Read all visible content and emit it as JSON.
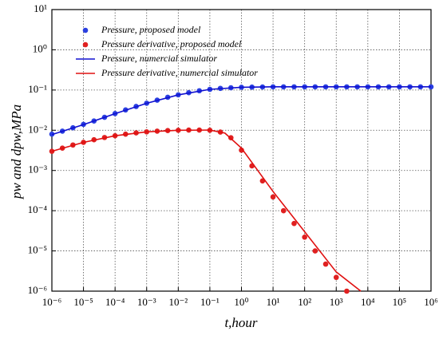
{
  "chart_data": {
    "type": "line",
    "xlabel": "t,hour",
    "ylabel": "pw and dpw,MPa",
    "xscale": "log",
    "yscale": "log",
    "grid": true,
    "legend": "upper left",
    "xlim": [
      1e-06,
      1000000.0
    ],
    "xticks": [
      {
        "value": 1e-06,
        "label": "10⁻⁶"
      },
      {
        "value": 1e-05,
        "label": "10⁻⁵"
      },
      {
        "value": 0.0001,
        "label": "10⁻⁴"
      },
      {
        "value": 0.001,
        "label": "10⁻³"
      },
      {
        "value": 0.01,
        "label": "10⁻²"
      },
      {
        "value": 0.1,
        "label": "10⁻¹"
      },
      {
        "value": 1,
        "label": "10⁰"
      },
      {
        "value": 10,
        "label": "10¹"
      },
      {
        "value": 100,
        "label": "10²"
      },
      {
        "value": 1000,
        "label": "10³"
      },
      {
        "value": 10000,
        "label": "10⁴"
      },
      {
        "value": 100000,
        "label": "10⁵"
      },
      {
        "value": 1000000,
        "label": "10⁶"
      }
    ],
    "ylim": [
      1e-06,
      10
    ],
    "yticks": [
      {
        "value": 1e-06,
        "label": "10⁻⁶"
      },
      {
        "value": 1e-05,
        "label": "10⁻⁵"
      },
      {
        "value": 0.0001,
        "label": "10⁻⁴"
      },
      {
        "value": 0.001,
        "label": "10⁻³"
      },
      {
        "value": 0.01,
        "label": "10⁻²"
      },
      {
        "value": 0.1,
        "label": "10⁻¹"
      },
      {
        "value": 1,
        "label": "10⁰"
      },
      {
        "value": 10,
        "label": "10¹"
      }
    ],
    "series": [
      {
        "name": "Pressure, proposed model",
        "color": "#2a3fe0",
        "mode": "markers",
        "x": [
          1e-06,
          2.15e-06,
          4.64e-06,
          1e-05,
          2.15e-05,
          4.64e-05,
          0.0001,
          0.000215,
          0.000464,
          0.001,
          0.00215,
          0.00464,
          0.01,
          0.0215,
          0.0464,
          0.1,
          0.215,
          0.464,
          1,
          2.15,
          4.64,
          10,
          21.5,
          46.4,
          100,
          215,
          464,
          1000,
          2150,
          4640,
          10000,
          21500,
          46400,
          100000,
          215000,
          464000,
          1000000
        ],
        "values": [
          0.008,
          0.0095,
          0.0115,
          0.014,
          0.017,
          0.021,
          0.026,
          0.032,
          0.039,
          0.047,
          0.056,
          0.066,
          0.076,
          0.086,
          0.096,
          0.104,
          0.11,
          0.114,
          0.117,
          0.118,
          0.119,
          0.12,
          0.12,
          0.12,
          0.12,
          0.12,
          0.12,
          0.12,
          0.12,
          0.12,
          0.12,
          0.12,
          0.12,
          0.12,
          0.12,
          0.12,
          0.12
        ]
      },
      {
        "name": "Pressure derivative, proposed model",
        "color": "#e02020",
        "mode": "markers",
        "x": [
          1e-06,
          2.15e-06,
          4.64e-06,
          1e-05,
          2.15e-05,
          4.64e-05,
          0.0001,
          0.000215,
          0.000464,
          0.001,
          0.00215,
          0.00464,
          0.01,
          0.0215,
          0.0464,
          0.1,
          0.215,
          0.464,
          1,
          2.15,
          4.64,
          10,
          21.5,
          46.4,
          100,
          215,
          464,
          1000,
          2150
        ],
        "values": [
          0.003,
          0.0036,
          0.0043,
          0.005,
          0.0058,
          0.0066,
          0.0073,
          0.008,
          0.0086,
          0.0091,
          0.0095,
          0.0098,
          0.01,
          0.0101,
          0.0101,
          0.01,
          0.009,
          0.0065,
          0.0032,
          0.0013,
          0.00055,
          0.00022,
          0.0001,
          4.8e-05,
          2.2e-05,
          1e-05,
          4.7e-06,
          2.2e-06,
          1e-06
        ]
      },
      {
        "name": "Pressure, numercial simulator",
        "color": "#1010d0",
        "mode": "line",
        "x": [
          1e-06,
          1e-05,
          0.0001,
          0.001,
          0.01,
          0.1,
          1,
          10,
          100,
          1000000
        ],
        "values": [
          0.0078,
          0.0138,
          0.0258,
          0.0468,
          0.0758,
          0.104,
          0.117,
          0.12,
          0.12,
          0.12
        ]
      },
      {
        "name": "Pressure derivative, numercial simulator",
        "color": "#e01010",
        "mode": "line",
        "x": [
          1e-06,
          1e-05,
          0.0001,
          0.001,
          0.01,
          0.1,
          0.3,
          1,
          10,
          100,
          1000,
          6000
        ],
        "values": [
          0.003,
          0.005,
          0.0073,
          0.0091,
          0.01,
          0.0101,
          0.0085,
          0.0036,
          0.0003,
          3e-05,
          3e-06,
          1e-06
        ]
      }
    ]
  }
}
